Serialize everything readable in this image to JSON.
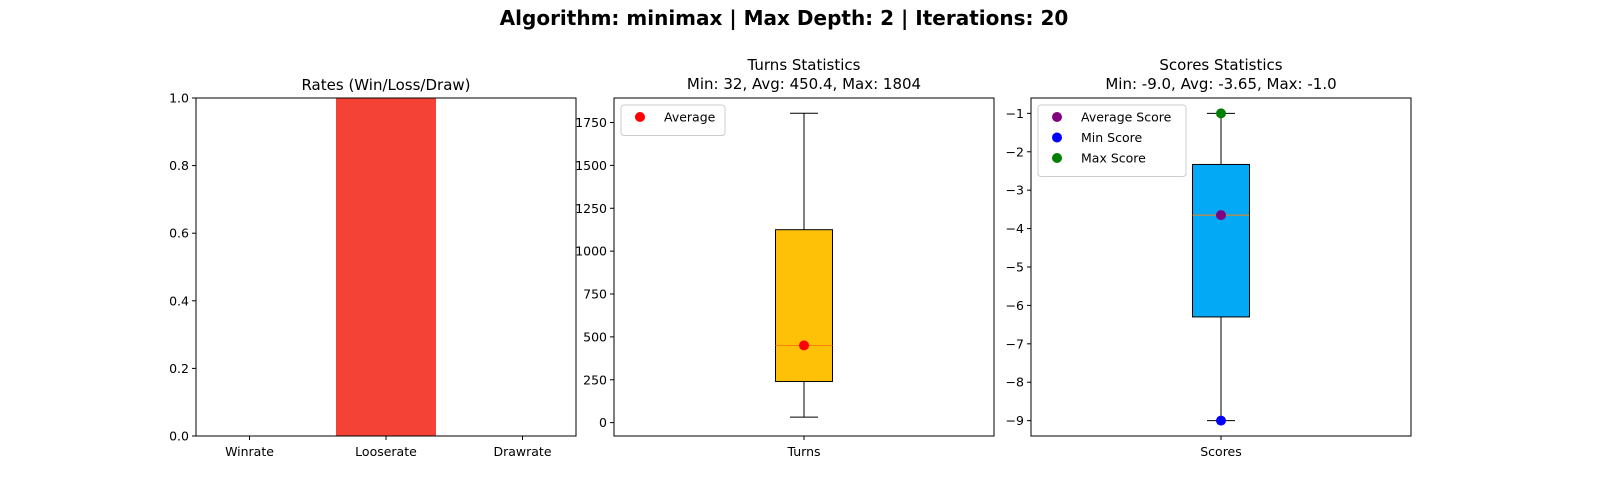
{
  "suptitle": "Algorithm: minimax | Max Depth: 2 | Iterations: 20",
  "chart_data": [
    {
      "type": "bar",
      "title": "Rates (Win/Loss/Draw)",
      "xlabel": "",
      "ylabel": "",
      "categories": [
        "Winrate",
        "Looserate",
        "Drawrate"
      ],
      "values": [
        0.0,
        1.0,
        0.0
      ],
      "bar_color": "#f44336",
      "ylim": [
        0,
        1
      ],
      "yticks": [
        0.0,
        0.2,
        0.4,
        0.6,
        0.8,
        1.0
      ],
      "ytick_labels": [
        "0.0",
        "0.2",
        "0.4",
        "0.6",
        "0.8",
        "1.0"
      ],
      "grid": false
    },
    {
      "type": "box",
      "title_lines": [
        "Turns Statistics",
        "Min: 32, Avg: 450.4, Max: 1804"
      ],
      "categories": [
        "Turns"
      ],
      "box": {
        "whisker_low": 32,
        "q1": 240,
        "median": 450,
        "q3": 1125,
        "whisker_high": 1804
      },
      "box_color": "#ffc107",
      "median_color": "#ff7f0e",
      "markers": [
        {
          "name": "Average",
          "value": 450.4,
          "color": "#ff0000"
        }
      ],
      "legend": {
        "placement": "upper-left",
        "entries": [
          "Average"
        ]
      },
      "ylim": [
        -78,
        1893
      ],
      "yticks": [
        0,
        250,
        500,
        750,
        1000,
        1250,
        1500,
        1750
      ],
      "ytick_labels": [
        "0",
        "250",
        "500",
        "750",
        "1000",
        "1250",
        "1500",
        "1750"
      ],
      "grid": false
    },
    {
      "type": "box",
      "title_lines": [
        "Scores Statistics",
        "Min: -9.0, Avg: -3.65, Max: -1.0"
      ],
      "categories": [
        "Scores"
      ],
      "box": {
        "whisker_low": -9.0,
        "q1": -6.3,
        "median": -3.65,
        "q3": -2.33,
        "whisker_high": -1.0
      },
      "box_color": "#03a9f4",
      "median_color": "#ff7f0e",
      "markers": [
        {
          "name": "Average Score",
          "value": -3.65,
          "color": "#800080"
        },
        {
          "name": "Min Score",
          "value": -9.0,
          "color": "#0000ff"
        },
        {
          "name": "Max Score",
          "value": -1.0,
          "color": "#008000"
        }
      ],
      "legend": {
        "placement": "upper-left",
        "entries": [
          "Average Score",
          "Min Score",
          "Max Score"
        ]
      },
      "ylim": [
        -9.4,
        -0.6
      ],
      "yticks": [
        -1,
        -2,
        -3,
        -4,
        -5,
        -6,
        -7,
        -8,
        -9
      ],
      "ytick_labels": [
        "−1",
        "−2",
        "−3",
        "−4",
        "−5",
        "−6",
        "−7",
        "−8",
        "−9"
      ],
      "grid": false
    }
  ]
}
